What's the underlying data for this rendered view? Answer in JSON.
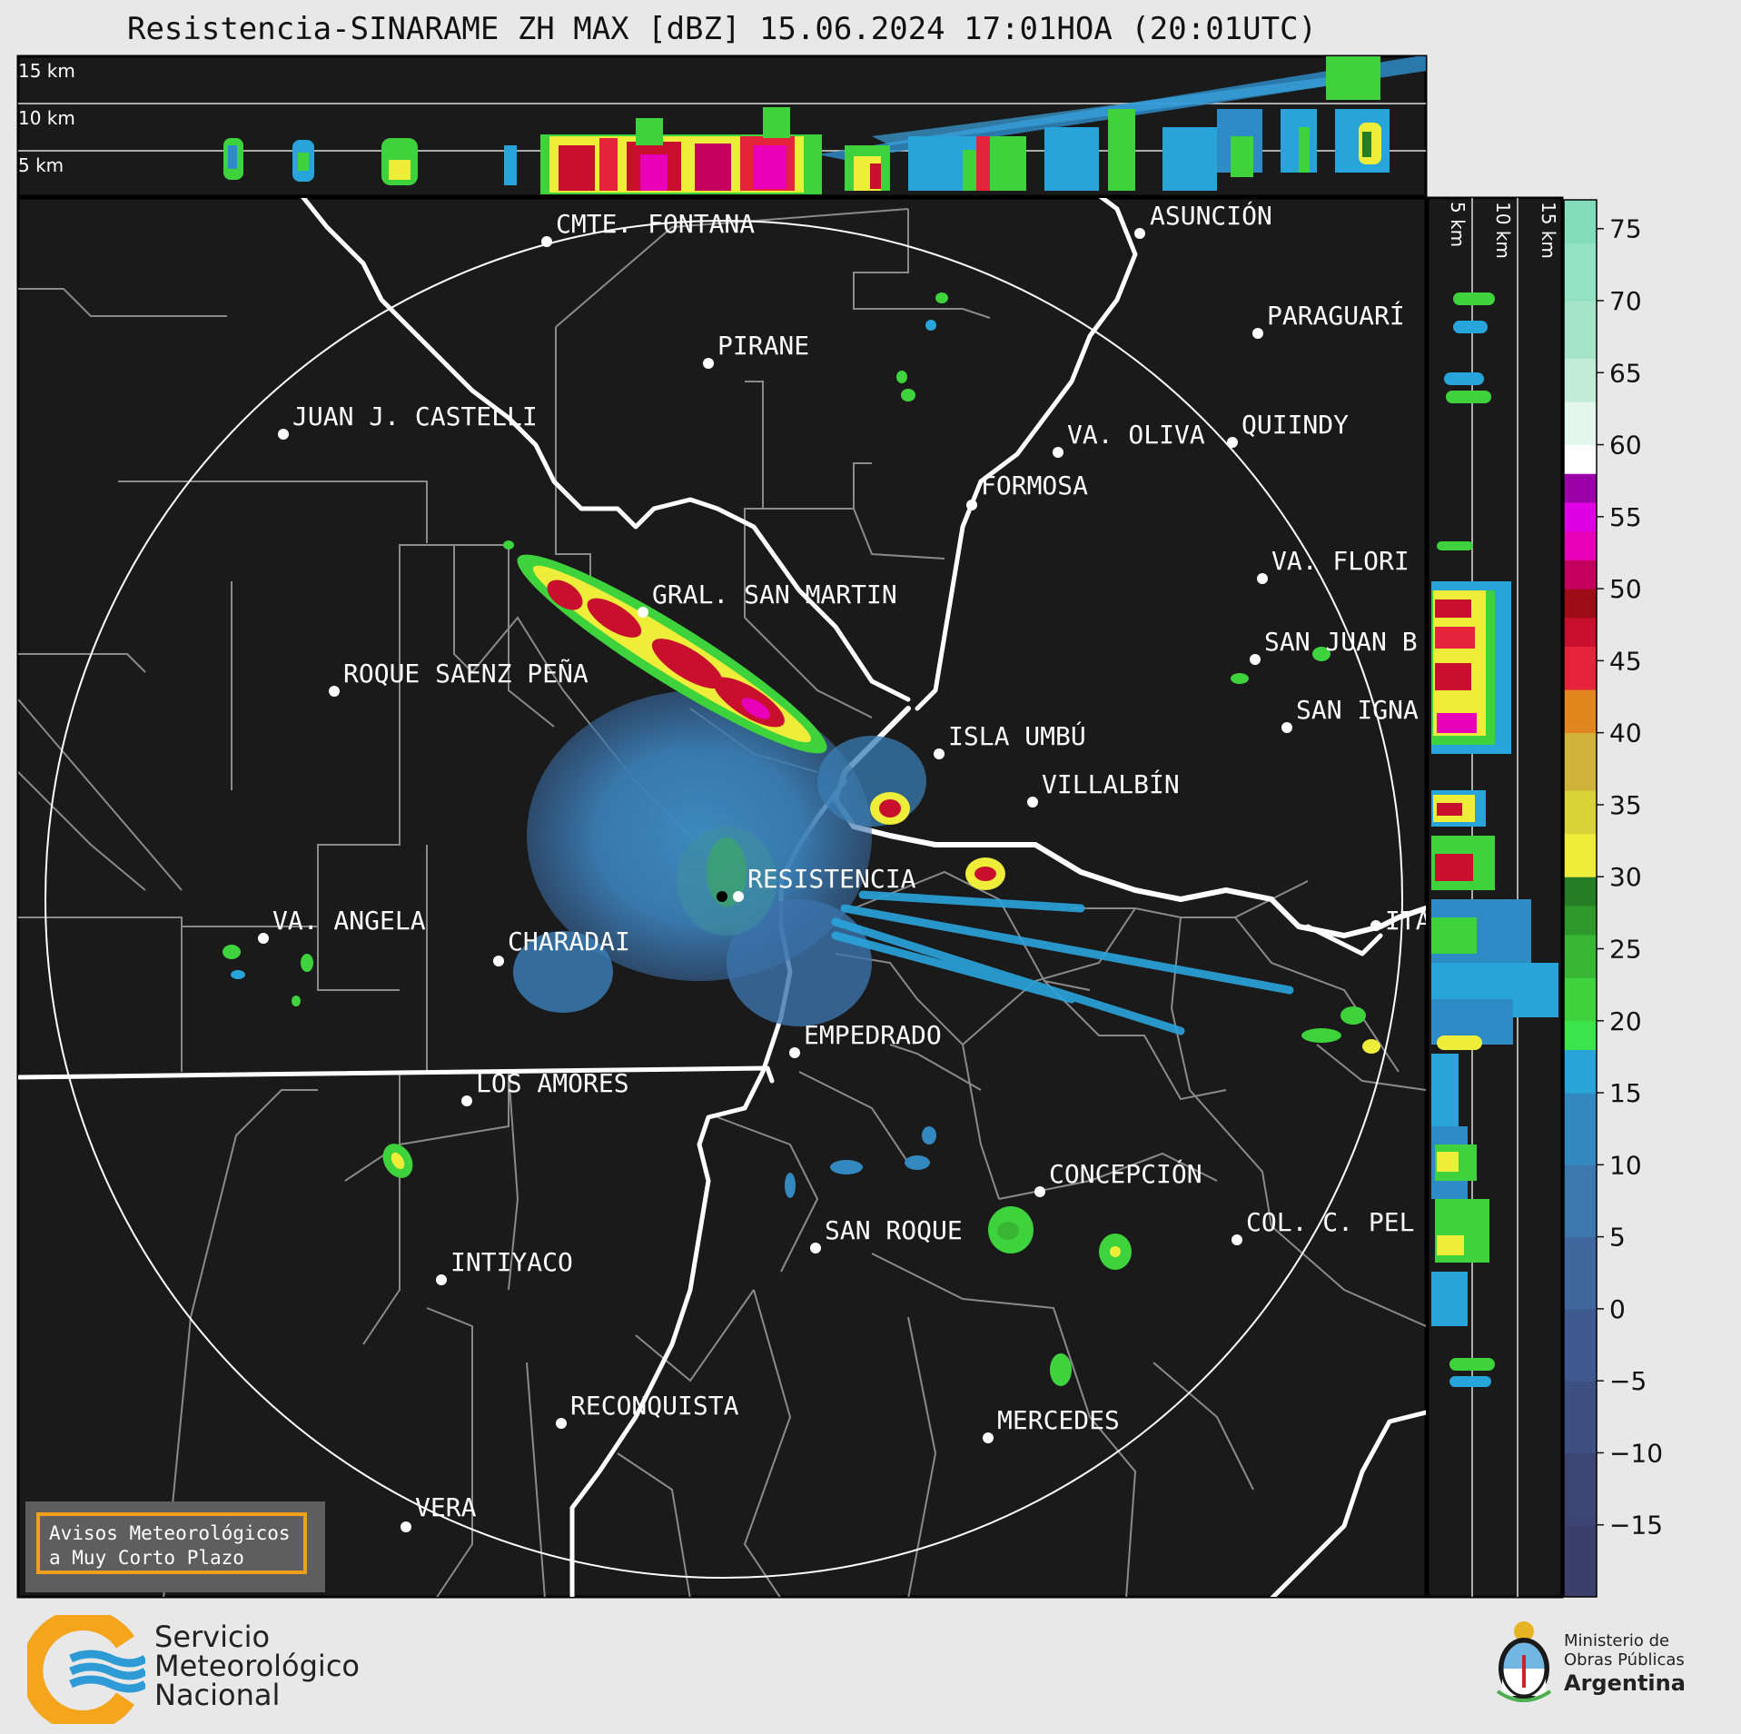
{
  "title": "Resistencia-SINARAME ZH MAX [dBZ] 15.06.2024 17:01HOA (20:01UTC)",
  "top_panel": {
    "height_labels": [
      "15 km",
      "10 km",
      "5 km"
    ]
  },
  "side_panel": {
    "height_labels": [
      "5 km",
      "10 km",
      "15 km"
    ]
  },
  "colorbar": {
    "unit": "dBZ",
    "range": [
      -20,
      77
    ],
    "ticks": [
      "75",
      "70",
      "65",
      "60",
      "55",
      "50",
      "45",
      "40",
      "35",
      "30",
      "25",
      "20",
      "15",
      "10",
      "5",
      "0",
      "−5",
      "−10",
      "−15"
    ],
    "tick_values": [
      75,
      70,
      65,
      60,
      55,
      50,
      45,
      40,
      35,
      30,
      25,
      20,
      15,
      10,
      5,
      0,
      -5,
      -10,
      -15
    ],
    "bands": [
      {
        "from": -20,
        "to": -15,
        "color": "#3c3f69"
      },
      {
        "from": -15,
        "to": -10,
        "color": "#3d4575"
      },
      {
        "from": -10,
        "to": -5,
        "color": "#3e4f82"
      },
      {
        "from": -5,
        "to": 0,
        "color": "#3e5a8f"
      },
      {
        "from": 0,
        "to": 5,
        "color": "#3f669d"
      },
      {
        "from": 5,
        "to": 10,
        "color": "#3d77ad"
      },
      {
        "from": 10,
        "to": 15,
        "color": "#3389bf"
      },
      {
        "from": 15,
        "to": 18,
        "color": "#27a4d9"
      },
      {
        "from": 18,
        "to": 20,
        "color": "#39e54a"
      },
      {
        "from": 20,
        "to": 23,
        "color": "#3ed33c"
      },
      {
        "from": 23,
        "to": 26,
        "color": "#38b533"
      },
      {
        "from": 26,
        "to": 28,
        "color": "#2f982c"
      },
      {
        "from": 28,
        "to": 30,
        "color": "#267d25"
      },
      {
        "from": 30,
        "to": 33,
        "color": "#eded3a"
      },
      {
        "from": 33,
        "to": 36,
        "color": "#d7d338"
      },
      {
        "from": 36,
        "to": 40,
        "color": "#cfb33a"
      },
      {
        "from": 40,
        "to": 43,
        "color": "#e0861d"
      },
      {
        "from": 43,
        "to": 46,
        "color": "#e5243b"
      },
      {
        "from": 46,
        "to": 48,
        "color": "#c8102e"
      },
      {
        "from": 48,
        "to": 50,
        "color": "#9e0c16"
      },
      {
        "from": 50,
        "to": 52,
        "color": "#c4005f"
      },
      {
        "from": 52,
        "to": 54,
        "color": "#e800b8"
      },
      {
        "from": 54,
        "to": 56,
        "color": "#e000e6"
      },
      {
        "from": 56,
        "to": 58,
        "color": "#9b00a8"
      },
      {
        "from": 58,
        "to": 60,
        "color": "#ffffff"
      },
      {
        "from": 60,
        "to": 63,
        "color": "#e3f7ee"
      },
      {
        "from": 63,
        "to": 66,
        "color": "#c3ecd8"
      },
      {
        "from": 66,
        "to": 70,
        "color": "#a6e4c9"
      },
      {
        "from": 70,
        "to": 74,
        "color": "#94e2c5"
      },
      {
        "from": 74,
        "to": 77,
        "color": "#82dcbc"
      }
    ]
  },
  "map": {
    "cities": [
      {
        "name": "CMTE. FONTANA"
      },
      {
        "name": "ASUNCIÓN"
      },
      {
        "name": "PIRANE"
      },
      {
        "name": "PARAGUARÍ"
      },
      {
        "name": "JUAN J. CASTELLI"
      },
      {
        "name": "VA. OLIVA"
      },
      {
        "name": "QUIINDY"
      },
      {
        "name": "FORMOSA"
      },
      {
        "name": "VA. FLORI"
      },
      {
        "name": "GRAL. SAN MARTIN"
      },
      {
        "name": "SAN JUAN B"
      },
      {
        "name": "ROQUE SAENZ PEÑA"
      },
      {
        "name": "SAN IGNA"
      },
      {
        "name": "ISLA UMBÚ"
      },
      {
        "name": "VILLALBÍN"
      },
      {
        "name": "RESISTENCIA"
      },
      {
        "name": "ITA"
      },
      {
        "name": "VA. ANGELA"
      },
      {
        "name": "CHARADAI"
      },
      {
        "name": "EMPEDRADO"
      },
      {
        "name": "LOS AMORES"
      },
      {
        "name": "CONCEPCIÓN"
      },
      {
        "name": "SAN ROQUE"
      },
      {
        "name": "COL. C. PEL"
      },
      {
        "name": "INTIYACO"
      },
      {
        "name": "RECONQUISTA"
      },
      {
        "name": "MERCEDES"
      },
      {
        "name": "VERA"
      }
    ]
  },
  "warning_box": {
    "line1": "Avisos Meteorológicos",
    "line2": "a Muy Corto Plazo"
  },
  "footer": {
    "smn": {
      "line1": "Servicio",
      "line2": "Meteorológico",
      "line3": "Nacional"
    },
    "ministry": {
      "line1": "Ministerio de",
      "line2": "Obras Públicas",
      "line3": "Argentina"
    }
  },
  "colors": {
    "panel_bg": "#1a1a1a",
    "border_lines": "#8a8a8a",
    "rivers": "#ffffff",
    "smn_orange": "#f5a51c",
    "smn_blue": "#2e9ad6"
  }
}
